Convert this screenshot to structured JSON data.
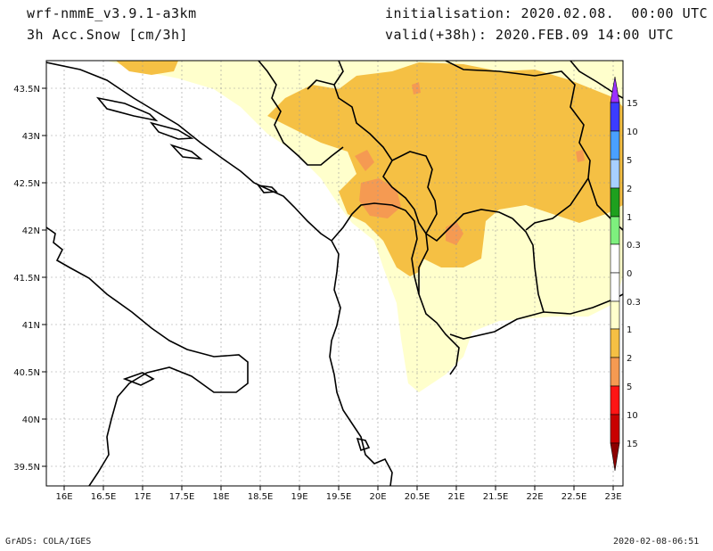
{
  "header": {
    "model": "wrf-nmmE_v3.9.1-a3km",
    "field": "3h Acc.Snow [cm/3h]",
    "init": "initialisation: 2020.02.08.  00:00 UTC",
    "valid": "valid(+38h): 2020.FEB.09 14:00 UTC"
  },
  "footer": {
    "left": "GrADS: COLA/IGES",
    "right": "2020-02-08-06:51"
  },
  "map": {
    "lon_range": [
      15.8,
      23.2
    ],
    "lat_range": [
      39.3,
      43.8
    ],
    "lon_ticks": [
      "16E",
      "16.5E",
      "17E",
      "17.5E",
      "18E",
      "18.5E",
      "19E",
      "19.5E",
      "20E",
      "20.5E",
      "21E",
      "21.5E",
      "22E",
      "22.5E",
      "23E"
    ],
    "lat_ticks": [
      "43.5N",
      "43N",
      "42.5N",
      "42N",
      "41.5N",
      "41N",
      "40.5N",
      "40N",
      "39.5N"
    ],
    "grid": "dotted"
  },
  "colorbar": {
    "labels": [
      "15",
      "10",
      "5",
      "2",
      "1",
      "0.3",
      "0",
      "0.3",
      "1",
      "2",
      "5",
      "10",
      "15"
    ],
    "colors": {
      "purple": "#9b30ff",
      "blue": "#3c3cff",
      "lightblue": "#4aa0ff",
      "paleblue": "#a8d0ff",
      "green": "#1ea01e",
      "lightgreen": "#7ef07e",
      "white": "#ffffff",
      "cream": "#ffffcc",
      "gold": "#f5c044",
      "orange": "#f59a52",
      "red": "#ff1414",
      "darkred": "#c80000",
      "maroon": "#8c0000"
    }
  }
}
